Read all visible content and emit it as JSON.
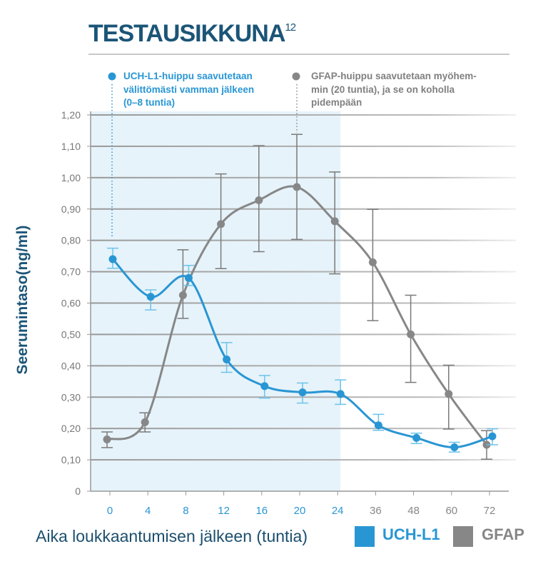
{
  "title": "TESTAUSIKKUNA",
  "title_superscript": "12",
  "annotations": {
    "uchl1": [
      "UCH-L1-huippu saavutetaan",
      "välittömästi vamman jälkeen",
      "(0–8 tuntia)"
    ],
    "gfap": [
      "GFAP-huippu saavutetaan myöhem-",
      "min (20 tuntia), ja se on koholla",
      "pidempään"
    ]
  },
  "colors": {
    "uchl1": "#2996d4",
    "gfap": "#878787",
    "shade": "#e6f3fa",
    "title": "#1b5577"
  },
  "chart_data": {
    "type": "line",
    "xlabel": "Aika loukkaantumisen jälkeen (tuntia)",
    "ylabel": "Seerumintaso(ng/ml)",
    "categories": [
      "0",
      "4",
      "8",
      "12",
      "16",
      "20",
      "24",
      "36",
      "48",
      "60",
      "72"
    ],
    "highlighted_categories": [
      "0",
      "4",
      "8",
      "12",
      "16",
      "20",
      "24"
    ],
    "ylim": [
      0,
      1.2
    ],
    "yticks": [
      "0",
      "0,10",
      "0,20",
      "0,30",
      "0,40",
      "0,50",
      "0,60",
      "0,70",
      "0,80",
      "0,90",
      "1,00",
      "1,10",
      "1,20"
    ],
    "grid": true,
    "legend_position": "bottom-right",
    "series": [
      {
        "name": "UCH-L1",
        "values": [
          0.74,
          0.62,
          0.68,
          0.42,
          0.335,
          0.315,
          0.31,
          0.21,
          0.17,
          0.14,
          0.175
        ],
        "error_upper": [
          0.775,
          0.642,
          0.72,
          0.474,
          0.369,
          0.345,
          0.355,
          0.245,
          0.185,
          0.156,
          0.199
        ],
        "error_lower": [
          0.711,
          0.578,
          0.656,
          0.379,
          0.297,
          0.281,
          0.277,
          0.194,
          0.152,
          0.125,
          0.148
        ]
      },
      {
        "name": "GFAP",
        "values": [
          0.165,
          0.22,
          0.625,
          0.852,
          0.928,
          0.97,
          0.861,
          0.73,
          0.5,
          0.31,
          0.148
        ],
        "error_upper": [
          0.189,
          0.25,
          0.77,
          1.012,
          1.102,
          1.138,
          1.018,
          0.899,
          0.625,
          0.402,
          0.193
        ],
        "error_lower": [
          0.139,
          0.189,
          0.551,
          0.71,
          0.764,
          0.803,
          0.693,
          0.544,
          0.347,
          0.198,
          0.102
        ]
      }
    ]
  }
}
